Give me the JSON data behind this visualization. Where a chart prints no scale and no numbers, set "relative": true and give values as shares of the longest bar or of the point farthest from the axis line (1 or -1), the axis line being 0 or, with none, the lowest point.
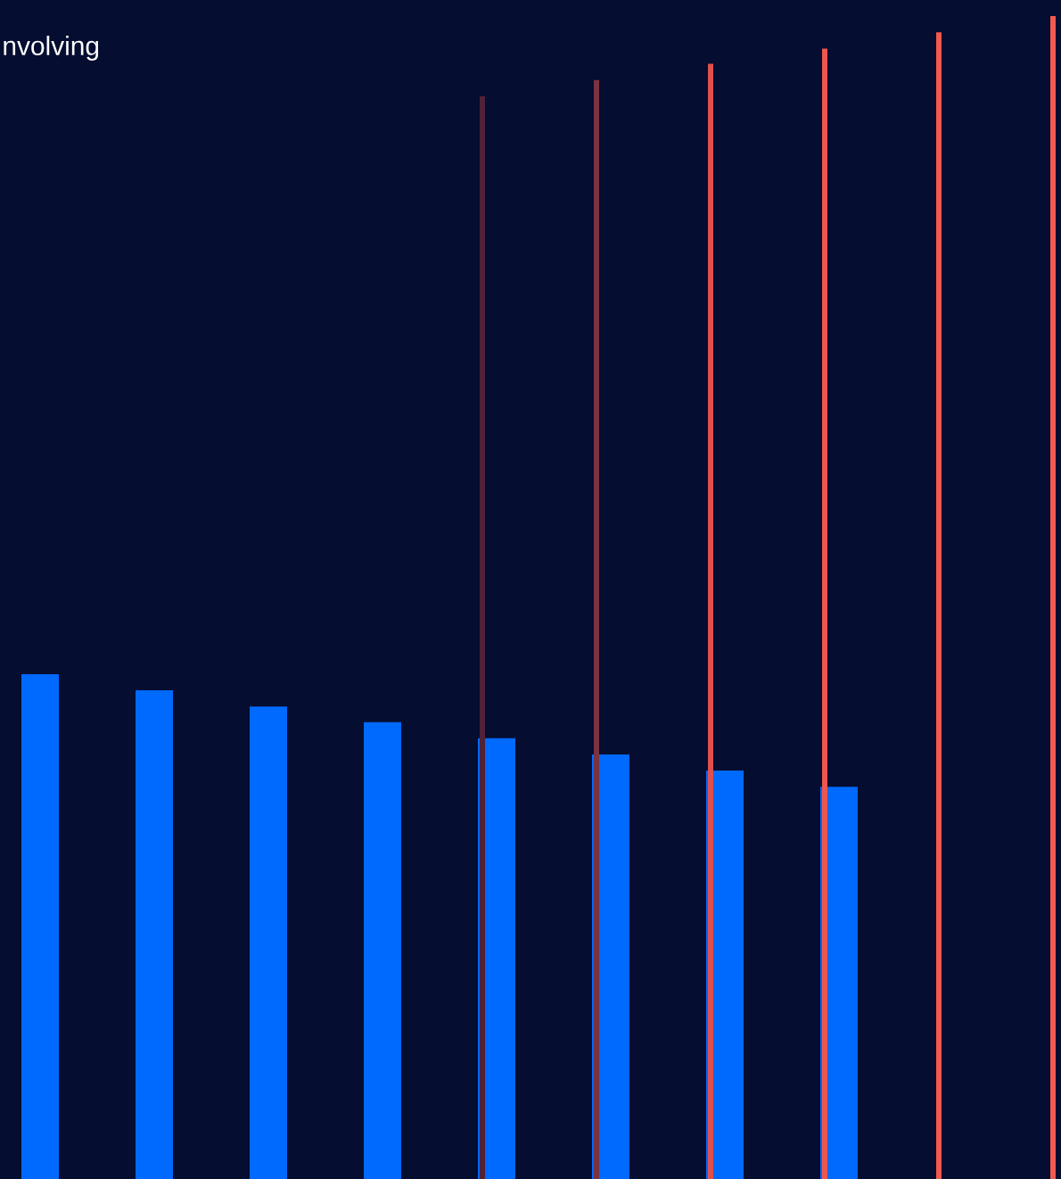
{
  "chart_data": [
    {
      "type": "bar",
      "relative": true,
      "color": "#006aff",
      "categories": [
        null,
        null,
        null,
        null,
        null,
        null,
        null,
        null
      ],
      "values": [
        1,
        0.968,
        0.936,
        0.905,
        0.873,
        0.841,
        0.809,
        0.777
      ],
      "annotations": [
        "nvolving"
      ]
    },
    {
      "type": "bar",
      "relative": true,
      "categories": [
        null,
        null,
        null,
        null,
        null,
        null
      ],
      "colors": [
        "#4f2238",
        "#7a3342",
        "#e0504f",
        "#ee574f",
        "#f25a50",
        "#f25a50"
      ],
      "values": [
        0.931,
        0.945,
        0.959,
        0.972,
        0.986,
        1
      ]
    }
  ]
}
